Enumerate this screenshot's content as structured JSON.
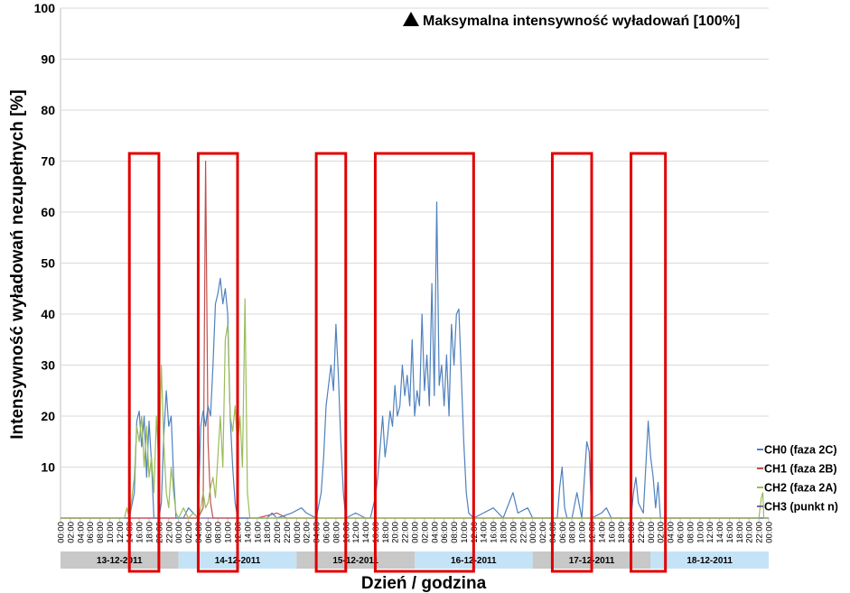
{
  "chart_data": {
    "type": "line",
    "xlabel": "Dzień / godzina",
    "ylabel": "Intensywność wyładowań nezupełnych [%]",
    "ylim": [
      0,
      100
    ],
    "yticks": [
      10,
      20,
      30,
      40,
      50,
      60,
      70,
      80,
      90,
      100
    ],
    "annotation": "Maksymalna intensywność wyładowań [100%]",
    "grid": true,
    "legend_position": "right",
    "hours": [
      "00:00",
      "02:00",
      "04:00",
      "06:00",
      "08:00",
      "10:00",
      "12:00",
      "14:00",
      "16:00",
      "18:00",
      "20:00",
      "22:00"
    ],
    "final_hour": "00:00",
    "days": [
      {
        "label": "13-12-2011",
        "color": "#c8c8c8"
      },
      {
        "label": "14-12-2011",
        "color": "#c5e3f7"
      },
      {
        "label": "15-12-2011",
        "color": "#c8c8c8"
      },
      {
        "label": "16-12-2011",
        "color": "#c5e3f7"
      },
      {
        "label": "17-12-2011",
        "color": "#c8c8c8"
      },
      {
        "label": "18-12-2011",
        "color": "#c5e3f7"
      }
    ],
    "highlight_windows_hours": [
      [
        14,
        20
      ],
      [
        28,
        36
      ],
      [
        52,
        58
      ],
      [
        64,
        84
      ],
      [
        100,
        108
      ],
      [
        116,
        123
      ]
    ],
    "highlight_color": "#e00000",
    "series": [
      {
        "name": "CH0 (faza 2C)",
        "color": "#4f81bd",
        "points": [
          [
            0,
            0
          ],
          [
            14,
            0
          ],
          [
            15,
            5
          ],
          [
            15.5,
            19
          ],
          [
            16,
            21
          ],
          [
            16.5,
            14
          ],
          [
            17,
            20
          ],
          [
            17.5,
            8
          ],
          [
            18,
            19
          ],
          [
            18.5,
            11
          ],
          [
            19,
            0
          ],
          [
            20,
            0
          ],
          [
            20.5,
            3
          ],
          [
            21,
            16
          ],
          [
            21.5,
            25
          ],
          [
            22,
            18
          ],
          [
            22.5,
            20
          ],
          [
            23,
            8
          ],
          [
            23.5,
            0
          ],
          [
            25,
            0
          ],
          [
            26,
            2
          ],
          [
            27,
            1
          ],
          [
            28,
            0
          ],
          [
            28.5,
            18
          ],
          [
            29,
            21
          ],
          [
            29.5,
            18
          ],
          [
            30,
            22
          ],
          [
            30.5,
            20
          ],
          [
            31,
            30
          ],
          [
            31.5,
            42
          ],
          [
            32,
            44
          ],
          [
            32.5,
            47
          ],
          [
            33,
            42
          ],
          [
            33.5,
            45
          ],
          [
            34,
            40
          ],
          [
            34.5,
            20
          ],
          [
            35,
            10
          ],
          [
            35.5,
            3
          ],
          [
            36,
            0
          ],
          [
            42,
            0
          ],
          [
            43,
            1
          ],
          [
            44,
            0
          ],
          [
            47,
            1
          ],
          [
            49,
            2
          ],
          [
            50,
            1
          ],
          [
            52,
            0
          ],
          [
            53,
            5
          ],
          [
            53.5,
            12
          ],
          [
            54,
            22
          ],
          [
            54.5,
            26
          ],
          [
            55,
            30
          ],
          [
            55.5,
            25
          ],
          [
            56,
            38
          ],
          [
            56.5,
            28
          ],
          [
            57,
            15
          ],
          [
            57.5,
            5
          ],
          [
            58,
            0
          ],
          [
            60,
            1
          ],
          [
            62,
            0
          ],
          [
            63,
            0
          ],
          [
            64,
            4
          ],
          [
            64.5,
            8
          ],
          [
            65,
            14
          ],
          [
            65.5,
            20
          ],
          [
            66,
            12
          ],
          [
            66.5,
            16
          ],
          [
            67,
            21
          ],
          [
            67.5,
            18
          ],
          [
            68,
            26
          ],
          [
            68.5,
            20
          ],
          [
            69,
            22
          ],
          [
            69.5,
            30
          ],
          [
            70,
            24
          ],
          [
            70.5,
            28
          ],
          [
            71,
            22
          ],
          [
            71.5,
            35
          ],
          [
            72,
            20
          ],
          [
            72.5,
            25
          ],
          [
            73,
            22
          ],
          [
            73.5,
            40
          ],
          [
            74,
            25
          ],
          [
            74.5,
            32
          ],
          [
            75,
            22
          ],
          [
            75.5,
            46
          ],
          [
            76,
            24
          ],
          [
            76.5,
            62
          ],
          [
            77,
            26
          ],
          [
            77.5,
            30
          ],
          [
            78,
            22
          ],
          [
            78.5,
            32
          ],
          [
            79,
            20
          ],
          [
            79.5,
            38
          ],
          [
            80,
            30
          ],
          [
            80.5,
            40
          ],
          [
            81,
            41
          ],
          [
            81.5,
            28
          ],
          [
            82,
            15
          ],
          [
            82.5,
            5
          ],
          [
            83,
            1
          ],
          [
            84,
            0
          ],
          [
            86,
            1
          ],
          [
            88,
            2
          ],
          [
            90,
            0
          ],
          [
            92,
            5
          ],
          [
            93,
            1
          ],
          [
            95,
            2
          ],
          [
            96,
            0
          ],
          [
            98,
            0
          ],
          [
            101,
            0
          ],
          [
            101.5,
            6
          ],
          [
            102,
            10
          ],
          [
            102.5,
            2
          ],
          [
            103,
            0
          ],
          [
            104,
            0
          ],
          [
            105,
            5
          ],
          [
            106,
            0
          ],
          [
            107,
            15
          ],
          [
            107.5,
            13
          ],
          [
            108,
            0
          ],
          [
            110,
            1
          ],
          [
            111,
            2
          ],
          [
            112,
            0
          ],
          [
            116,
            0
          ],
          [
            116.5,
            5
          ],
          [
            117,
            8
          ],
          [
            117.5,
            3
          ],
          [
            118,
            2
          ],
          [
            118.5,
            1
          ],
          [
            119,
            10
          ],
          [
            119.5,
            19
          ],
          [
            120,
            12
          ],
          [
            120.5,
            8
          ],
          [
            121,
            2
          ],
          [
            121.5,
            7
          ],
          [
            122,
            0
          ],
          [
            126,
            0
          ],
          [
            144,
            0
          ]
        ]
      },
      {
        "name": "CH1 (faza 2B)",
        "color": "#c0504d",
        "points": [
          [
            0,
            0
          ],
          [
            28,
            0
          ],
          [
            29,
            2
          ],
          [
            29.5,
            70
          ],
          [
            30,
            15
          ],
          [
            30.5,
            3
          ],
          [
            31,
            0
          ],
          [
            40,
            0
          ],
          [
            44,
            1
          ],
          [
            46,
            0
          ],
          [
            144,
            0
          ]
        ]
      },
      {
        "name": "CH2 (faza 2A)",
        "color": "#9bbb59",
        "points": [
          [
            0,
            0
          ],
          [
            13,
            0
          ],
          [
            13.5,
            2
          ],
          [
            14,
            0
          ],
          [
            15,
            8
          ],
          [
            15.5,
            18
          ],
          [
            16,
            15
          ],
          [
            16.5,
            20
          ],
          [
            17,
            10
          ],
          [
            17.5,
            18
          ],
          [
            18,
            8
          ],
          [
            18.5,
            12
          ],
          [
            19,
            5
          ],
          [
            19.5,
            20
          ],
          [
            20,
            10
          ],
          [
            20.5,
            30
          ],
          [
            21,
            15
          ],
          [
            21.5,
            5
          ],
          [
            22,
            2
          ],
          [
            22.5,
            10
          ],
          [
            23,
            5
          ],
          [
            23.5,
            1
          ],
          [
            24,
            0
          ],
          [
            25,
            2
          ],
          [
            26,
            0
          ],
          [
            27,
            1
          ],
          [
            28,
            0
          ],
          [
            28.5,
            2
          ],
          [
            29,
            5
          ],
          [
            29.5,
            2
          ],
          [
            30,
            3
          ],
          [
            30.5,
            6
          ],
          [
            31,
            8
          ],
          [
            31.5,
            4
          ],
          [
            32,
            12
          ],
          [
            32.5,
            20
          ],
          [
            33,
            10
          ],
          [
            33.5,
            35
          ],
          [
            34,
            38
          ],
          [
            34.5,
            20
          ],
          [
            35,
            17
          ],
          [
            35.5,
            22
          ],
          [
            36,
            14
          ],
          [
            36.5,
            20
          ],
          [
            37,
            10
          ],
          [
            37.5,
            43
          ],
          [
            38,
            5
          ],
          [
            38.5,
            0
          ],
          [
            40,
            0
          ],
          [
            142,
            0
          ],
          [
            142.5,
            4
          ],
          [
            142.8,
            5
          ],
          [
            143,
            0
          ],
          [
            144,
            0
          ]
        ]
      },
      {
        "name": "CH3 (punkt n)",
        "color": "#8064a2",
        "points": [
          [
            0,
            0
          ],
          [
            144,
            0
          ]
        ]
      }
    ]
  }
}
